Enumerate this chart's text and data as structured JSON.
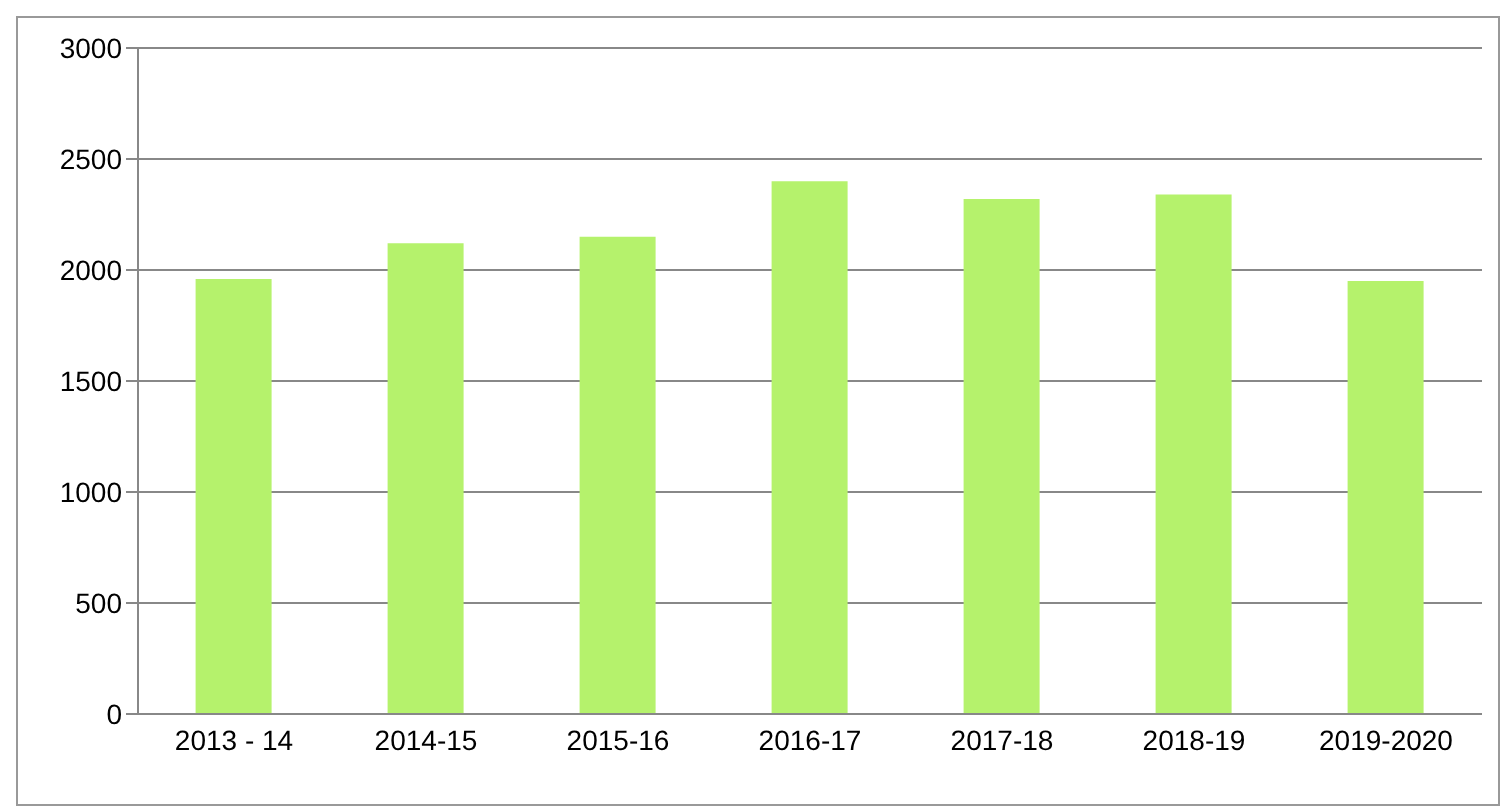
{
  "chart_data": {
    "type": "bar",
    "categories": [
      "2013 - 14",
      "2014-15",
      "2015-16",
      "2016-17",
      "2017-18",
      "2018-19",
      "2019-2020"
    ],
    "values": [
      1960,
      2120,
      2150,
      2400,
      2320,
      2340,
      1950
    ],
    "color": "#b5f26c",
    "ylim": [
      0,
      3000
    ],
    "yticks": [
      0,
      500,
      1000,
      1500,
      2000,
      2500,
      3000
    ],
    "grid": "y",
    "legend": false
  }
}
